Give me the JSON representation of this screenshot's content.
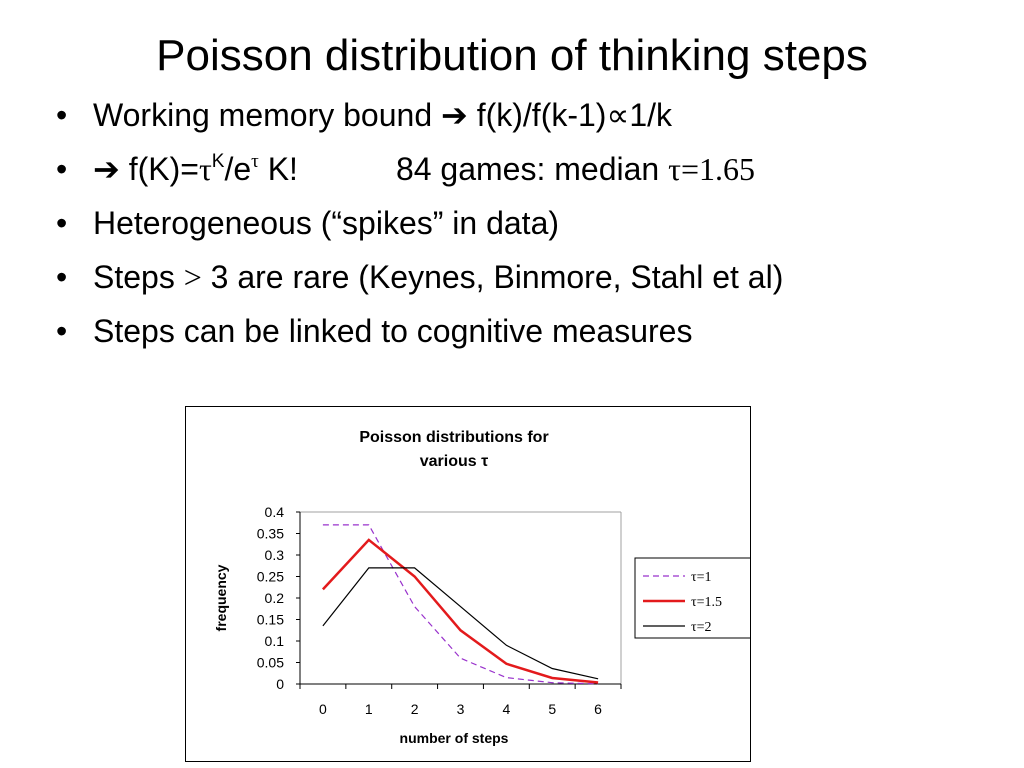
{
  "slide": {
    "title": "Poisson distribution of thinking steps",
    "bullet_marker": "•",
    "bullets": {
      "b1": {
        "text": "Working memory bound ",
        "arrow": "➔",
        "formula": " f(k)/f(k-1)",
        "prop": "∝",
        "tail": "1/k"
      },
      "b2": {
        "arrow": "➔",
        "f": " f(K)=",
        "tau": "τ",
        "k_sup": "K",
        "slash_e": "/e",
        "tau_sup": "τ",
        "kfact": " K!",
        "games": "84 games:  median ",
        "median_value": "τ=1.65"
      },
      "b3": {
        "text": "Heterogeneous (“spikes” in data)"
      },
      "b4": {
        "pre": "Steps ",
        "gt": ">",
        "post": " 3 are rare (Keynes, Binmore, Stahl et al)"
      },
      "b5": {
        "text": "Steps can be linked to cognitive measures"
      }
    }
  },
  "chart_data": {
    "type": "line",
    "title": [
      "Poisson distributions for",
      "various τ"
    ],
    "xlabel": "number of steps",
    "ylabel": "frequency",
    "x": [
      0,
      1,
      2,
      3,
      4,
      5,
      6
    ],
    "ylim": [
      0,
      0.4
    ],
    "yticks": [
      "0",
      "0.05",
      "0.1",
      "0.15",
      "0.2",
      "0.25",
      "0.3",
      "0.35",
      "0.4"
    ],
    "legend_position": "right",
    "series": [
      {
        "name": "τ=1",
        "values": [
          0.37,
          0.37,
          0.18,
          0.06,
          0.015,
          0.003,
          0.0005
        ],
        "color": "#9932cc",
        "dash": "dashed"
      },
      {
        "name": "τ=1.5",
        "values": [
          0.22,
          0.335,
          0.25,
          0.125,
          0.047,
          0.014,
          0.0035
        ],
        "color": "#e31a1c",
        "dash": "solid"
      },
      {
        "name": "τ=2",
        "values": [
          0.135,
          0.27,
          0.27,
          0.18,
          0.09,
          0.036,
          0.012
        ],
        "color": "#000000",
        "dash": "solid"
      }
    ]
  }
}
